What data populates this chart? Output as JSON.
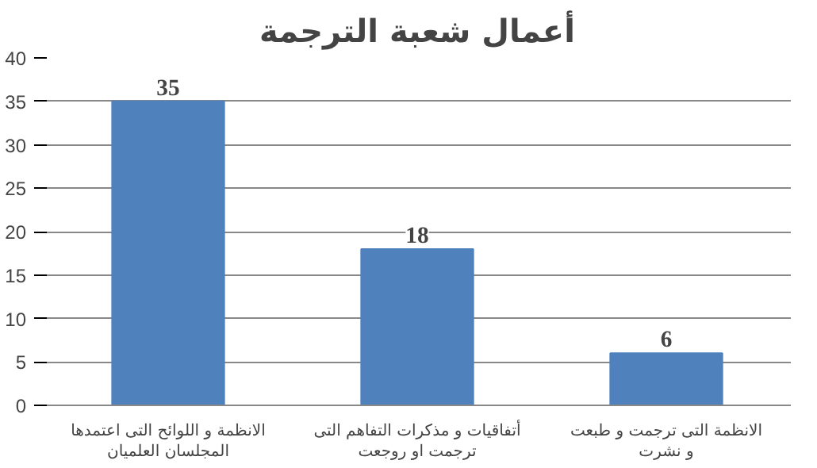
{
  "chart_data": {
    "type": "bar",
    "title": "أعمال شعبة الترجمة",
    "categories": [
      "الانظمة و اللوائح التى اعتمدها المجلسان العلميان",
      "أتفاقيات و مذكرات التفاهم التى ترجمت او روجعت",
      "الانظمة التى ترجمت و طبعت و نشرت"
    ],
    "values": [
      35,
      18,
      6
    ],
    "color": "#4f81bd",
    "ylim": [
      0,
      40
    ],
    "yticks": [
      0,
      5,
      10,
      15,
      20,
      25,
      30,
      35,
      40
    ],
    "grid": "y",
    "data_labels": true
  }
}
